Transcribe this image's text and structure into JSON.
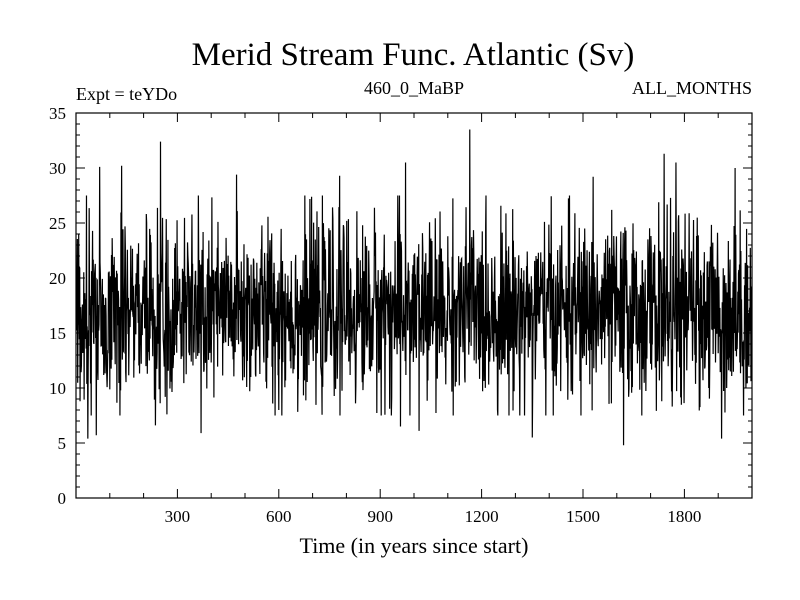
{
  "chart_data": {
    "type": "line",
    "title": "Merid Stream Func. Atlantic (Sv)",
    "subtitle_left": "Expt = teYDo",
    "subtitle_center": "460_0_MaBP",
    "subtitle_right": "ALL_MONTHS",
    "xlabel": "Time (in years since start)",
    "ylabel": "",
    "xlim": [
      0,
      2000
    ],
    "ylim": [
      0,
      35
    ],
    "xticks": [
      300,
      600,
      900,
      1200,
      1500,
      1800
    ],
    "yticks": [
      0,
      5,
      10,
      15,
      20,
      25,
      30,
      35
    ],
    "grid": false,
    "color": "#000000",
    "series": [
      {
        "x_start": 1,
        "x_step": 1,
        "count": 2000,
        "mean": 17,
        "std": 4,
        "anchors": [
          {
            "x": 8,
            "y": 24.0
          },
          {
            "x": 12,
            "y": 8.8
          },
          {
            "x": 35,
            "y": 5.4
          },
          {
            "x": 60,
            "y": 5.7
          },
          {
            "x": 70,
            "y": 30.1
          },
          {
            "x": 135,
            "y": 30.2
          },
          {
            "x": 250,
            "y": 32.4
          },
          {
            "x": 235,
            "y": 6.6
          },
          {
            "x": 370,
            "y": 5.9
          },
          {
            "x": 475,
            "y": 29.4
          },
          {
            "x": 600,
            "y": 8.0
          },
          {
            "x": 780,
            "y": 29.3
          },
          {
            "x": 975,
            "y": 30.5
          },
          {
            "x": 960,
            "y": 6.5
          },
          {
            "x": 1015,
            "y": 6.1
          },
          {
            "x": 1165,
            "y": 33.5
          },
          {
            "x": 1350,
            "y": 5.5
          },
          {
            "x": 1530,
            "y": 29.2
          },
          {
            "x": 1620,
            "y": 4.8
          },
          {
            "x": 1740,
            "y": 31.3
          },
          {
            "x": 1775,
            "y": 30.5
          },
          {
            "x": 1910,
            "y": 5.4
          },
          {
            "x": 1950,
            "y": 30.0
          },
          {
            "x": 1985,
            "y": 10.5
          },
          {
            "x": 2000,
            "y": 19.0
          }
        ]
      }
    ]
  }
}
